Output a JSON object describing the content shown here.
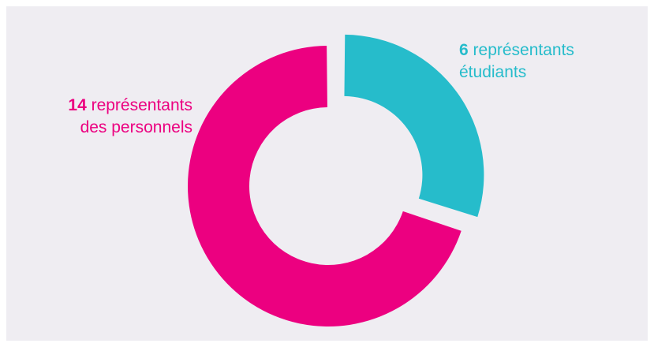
{
  "colors": {
    "background": "#efedf2",
    "staff": "#ec0080",
    "students": "#26bccb"
  },
  "chart_data": {
    "type": "pie",
    "variant": "donut",
    "slices": [
      {
        "value": 6,
        "label": "représentants étudiants",
        "color": "#26bccb",
        "exploded": true
      },
      {
        "value": 14,
        "label": "représentants des personnels",
        "color": "#ec0080",
        "exploded": false
      }
    ]
  },
  "labels": {
    "students": {
      "count": "6",
      "line1": " représentants",
      "line2": "étudiants"
    },
    "staff": {
      "count": "14",
      "line1": " représentants",
      "line2": "des personnels"
    }
  }
}
